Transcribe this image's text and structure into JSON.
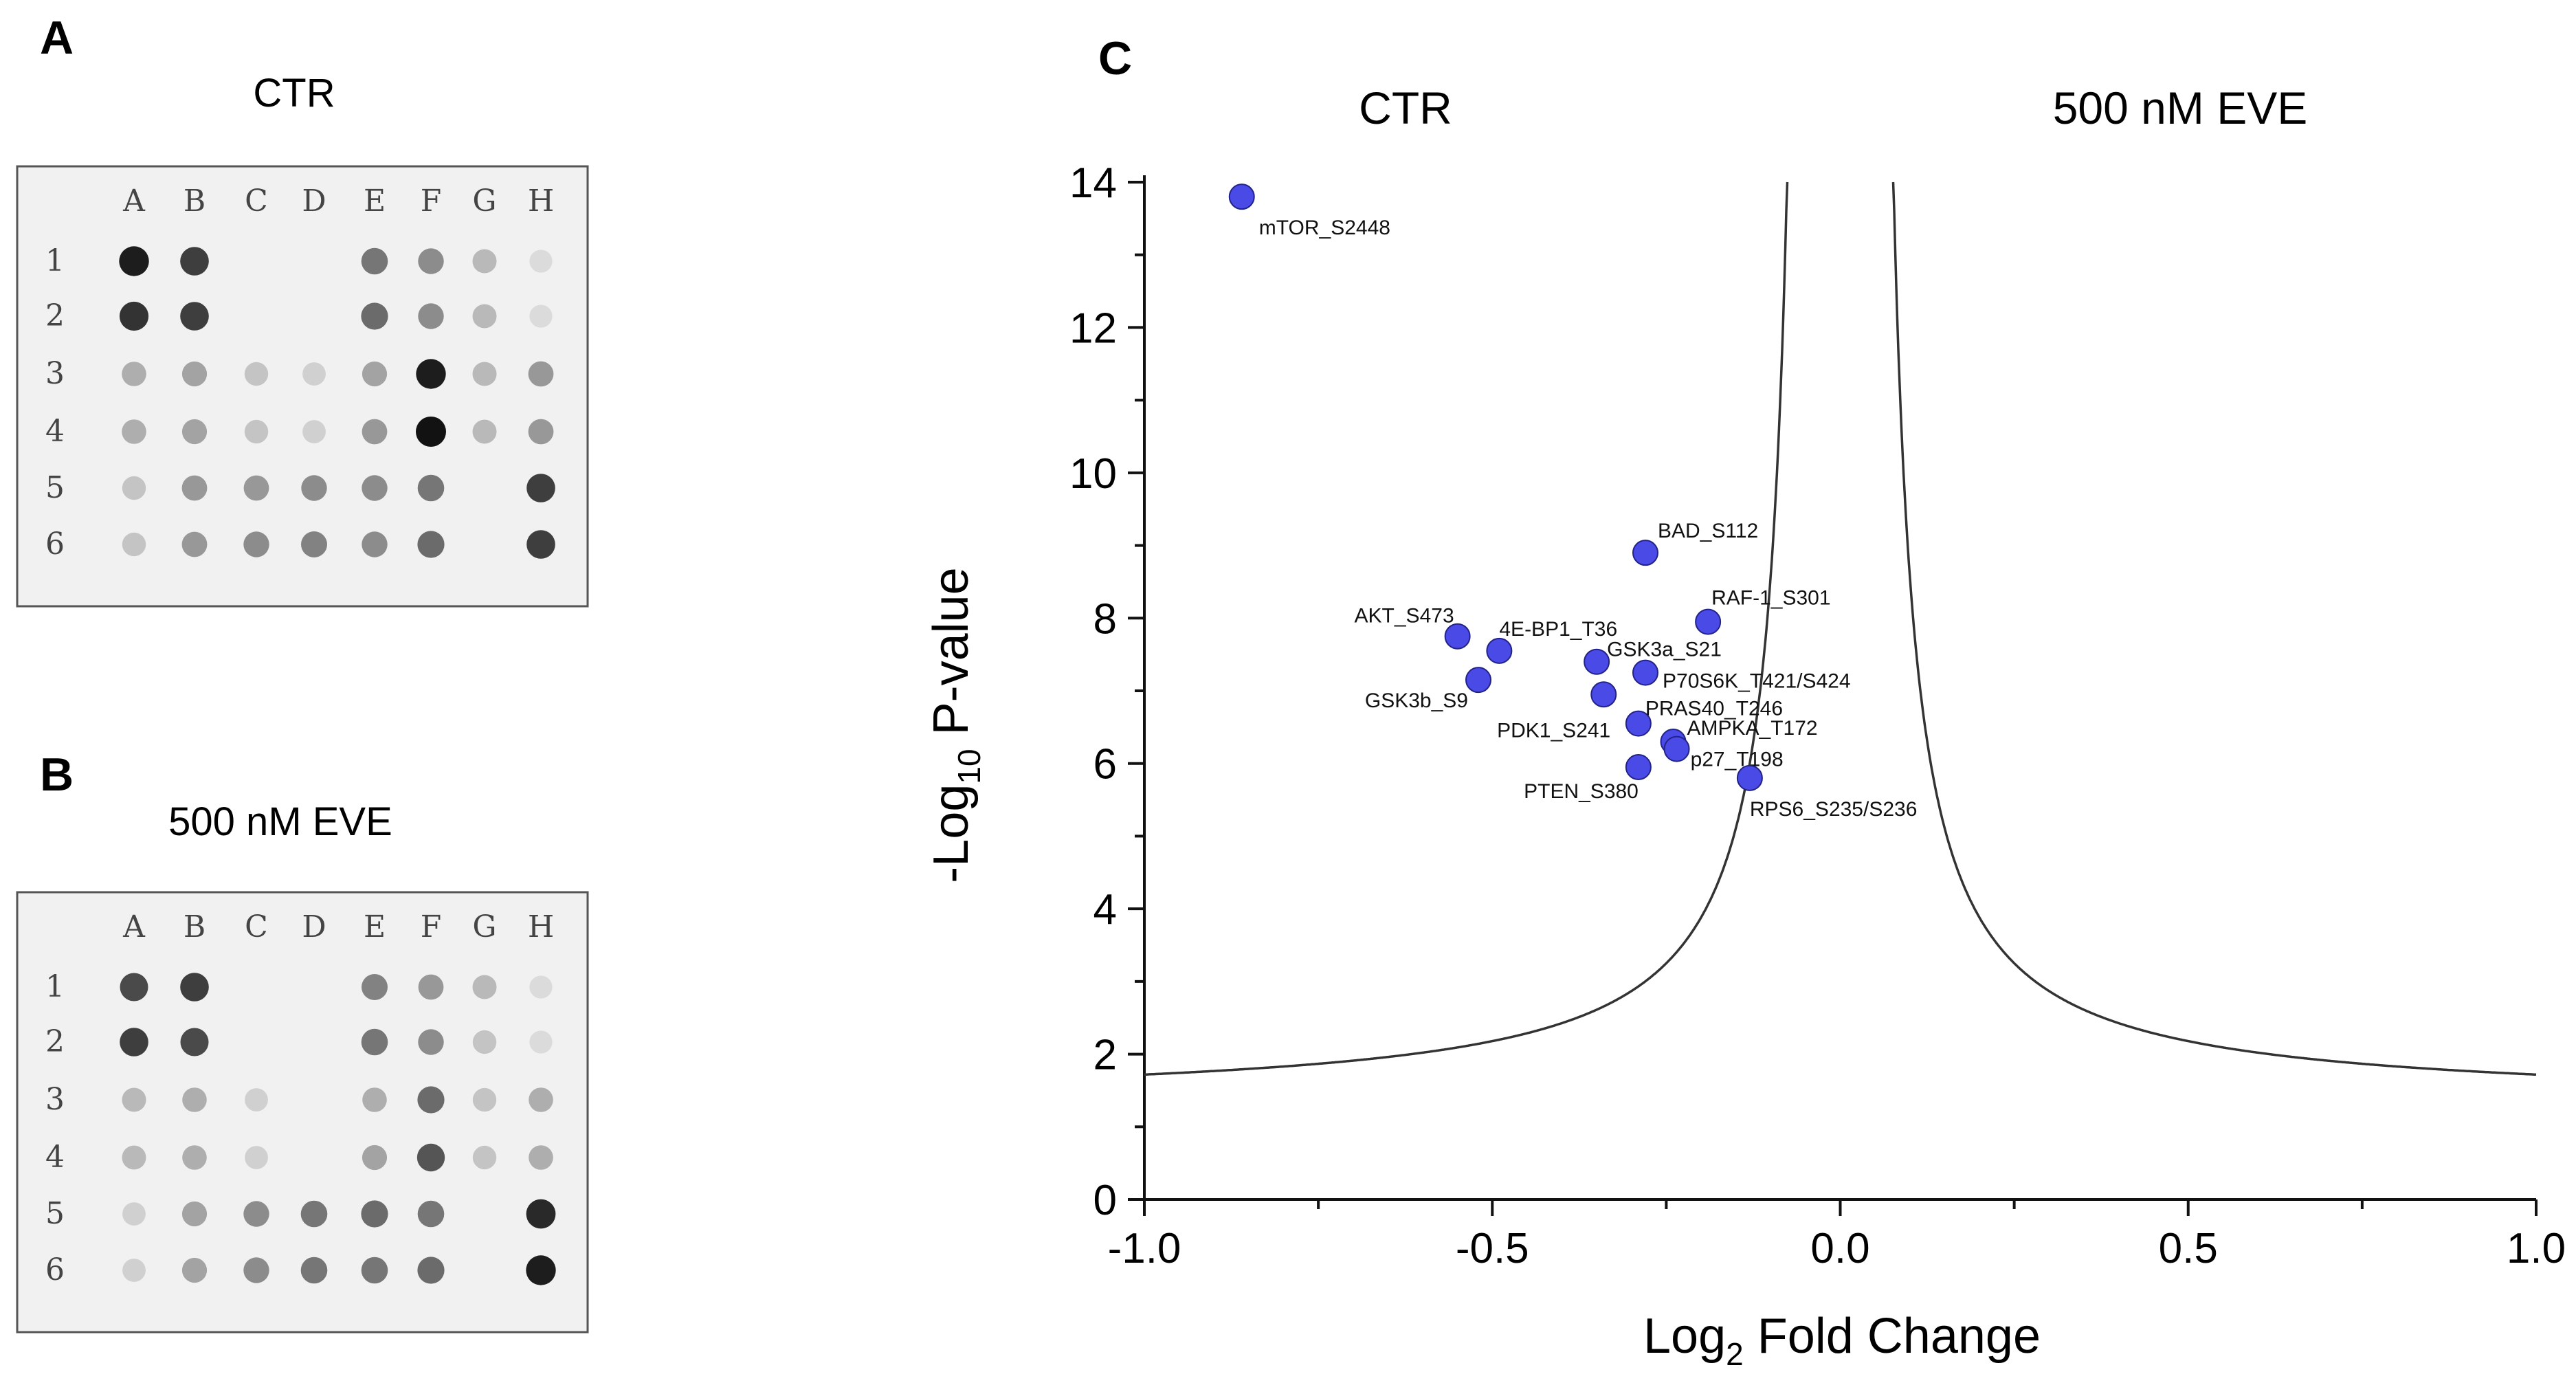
{
  "panels": {
    "a": {
      "letter": "A",
      "title": "CTR"
    },
    "b": {
      "letter": "B",
      "title": "500 nM EVE"
    },
    "c": {
      "letter": "C",
      "left_label": "CTR",
      "right_label": "500 nM EVE"
    }
  },
  "blot": {
    "columns": [
      "A",
      "B",
      "C",
      "D",
      "E",
      "F",
      "G",
      "H"
    ],
    "rows": [
      "1",
      "2",
      "3",
      "4",
      "5",
      "6"
    ],
    "ctr_intensity": [
      [
        0.95,
        0.8,
        0.0,
        0.0,
        0.55,
        0.45,
        0.25,
        0.1
      ],
      [
        0.85,
        0.8,
        0.0,
        0.0,
        0.6,
        0.45,
        0.25,
        0.1
      ],
      [
        0.3,
        0.35,
        0.2,
        0.15,
        0.35,
        0.95,
        0.25,
        0.4
      ],
      [
        0.3,
        0.35,
        0.2,
        0.15,
        0.4,
        1.0,
        0.25,
        0.4
      ],
      [
        0.2,
        0.4,
        0.4,
        0.45,
        0.45,
        0.55,
        0.0,
        0.8
      ],
      [
        0.2,
        0.4,
        0.45,
        0.5,
        0.45,
        0.6,
        0.0,
        0.8
      ]
    ],
    "eve_intensity": [
      [
        0.75,
        0.8,
        0.0,
        0.0,
        0.5,
        0.4,
        0.25,
        0.1
      ],
      [
        0.8,
        0.75,
        0.0,
        0.0,
        0.55,
        0.45,
        0.2,
        0.1
      ],
      [
        0.25,
        0.3,
        0.15,
        0.0,
        0.3,
        0.6,
        0.2,
        0.3
      ],
      [
        0.25,
        0.3,
        0.15,
        0.0,
        0.35,
        0.7,
        0.2,
        0.3
      ],
      [
        0.15,
        0.35,
        0.45,
        0.55,
        0.6,
        0.55,
        0.0,
        0.9
      ],
      [
        0.15,
        0.35,
        0.45,
        0.55,
        0.55,
        0.6,
        0.0,
        0.95
      ]
    ]
  },
  "chart_data": {
    "type": "scatter",
    "title": "",
    "xlabel_base": "Log",
    "xlabel_sub": "2",
    "xlabel_rest": " Fold Change",
    "ylabel_base": "-Log",
    "ylabel_sub": "10",
    "ylabel_rest": " P-value",
    "xlim": [
      -1.0,
      1.0
    ],
    "ylim": [
      0,
      14
    ],
    "xticks": [
      -1.0,
      -0.5,
      0.0,
      0.5,
      1.0
    ],
    "xtick_labels": [
      "-1.0",
      "-0.5",
      "0.0",
      "0.5",
      "1.0"
    ],
    "yticks": [
      0,
      2,
      4,
      6,
      8,
      10,
      12,
      14
    ],
    "ytick_labels": [
      "0",
      "2",
      "4",
      "6",
      "8",
      "10",
      "12",
      "14"
    ],
    "point_color": "#4a4ae6",
    "threshold_curve": {
      "description": "significance threshold",
      "x0": 0.045
    },
    "points": [
      {
        "label": "mTOR_S2448",
        "x": -0.86,
        "y": 13.8
      },
      {
        "label": "BAD_S112",
        "x": -0.28,
        "y": 8.9
      },
      {
        "label": "RAF-1_S301",
        "x": -0.19,
        "y": 7.95
      },
      {
        "label": "AKT_S473",
        "x": -0.55,
        "y": 7.75
      },
      {
        "label": "4E-BP1_T36",
        "x": -0.49,
        "y": 7.55
      },
      {
        "label": "GSK3a_S21",
        "x": -0.35,
        "y": 7.4
      },
      {
        "label": "P70S6K_T421/S424",
        "x": -0.28,
        "y": 7.25
      },
      {
        "label": "GSK3b_S9",
        "x": -0.52,
        "y": 7.15
      },
      {
        "label": "PDK1_S241",
        "x": -0.34,
        "y": 6.95
      },
      {
        "label": "PRAS40_T246",
        "x": -0.29,
        "y": 6.55
      },
      {
        "label": "AMPKA_T172",
        "x": -0.24,
        "y": 6.3
      },
      {
        "label": "p27_T198",
        "x": -0.235,
        "y": 6.2
      },
      {
        "label": "PTEN_S380",
        "x": -0.29,
        "y": 5.95
      },
      {
        "label": "RPS6_S235/S236",
        "x": -0.13,
        "y": 5.8
      }
    ]
  }
}
